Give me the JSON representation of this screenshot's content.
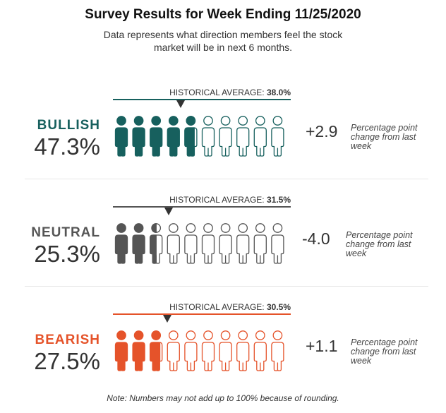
{
  "header": {
    "title": "Survey Results for Week Ending 11/25/2020",
    "subtitle": "Data represents what direction members feel the stock market will be in next 6 months."
  },
  "chart_data": {
    "type": "pictogram",
    "title": "Survey Results for Week Ending 11/25/2020",
    "unit": "percent of members",
    "icons_per_row": 10,
    "icon_value": 10,
    "historical_label": "HISTORICAL AVERAGE:",
    "change_note": "Percentage point change from last week",
    "rows": [
      {
        "name": "BULLISH",
        "value": 47.3,
        "display": "47.3%",
        "historical": 38.0,
        "historical_display": "38.0%",
        "change": 2.9,
        "change_display": "+2.9",
        "color": "#17605e"
      },
      {
        "name": "NEUTRAL",
        "value": 25.3,
        "display": "25.3%",
        "historical": 31.5,
        "historical_display": "31.5%",
        "change": -4.0,
        "change_display": "-4.0",
        "color": "#555555"
      },
      {
        "name": "BEARISH",
        "value": 27.5,
        "display": "27.5%",
        "historical": 30.5,
        "historical_display": "30.5%",
        "change": 1.1,
        "change_display": "+1.1",
        "color": "#e5532a"
      }
    ]
  },
  "footer": {
    "note": "Note: Numbers may not add up to 100% because of rounding."
  }
}
